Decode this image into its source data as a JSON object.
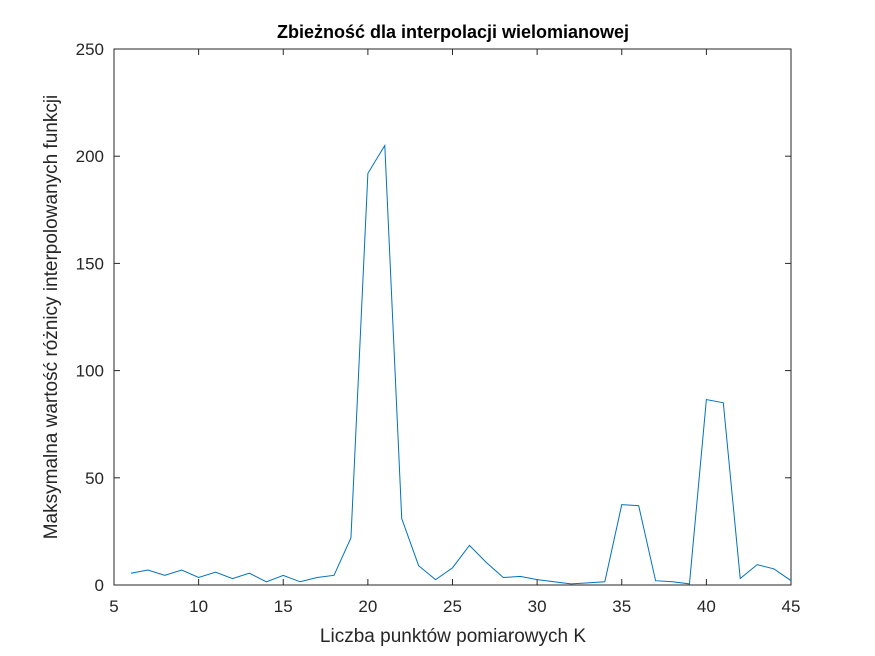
{
  "chart_data": {
    "type": "line",
    "title": "Zbieżność dla interpolacji wielomianowej",
    "xlabel": "Liczba punktów pomiarowych K",
    "ylabel": "Maksymalna wartość różnicy interpolowanych funkcji",
    "xlim": [
      5,
      45
    ],
    "ylim": [
      0,
      250
    ],
    "xticks": [
      5,
      10,
      15,
      20,
      25,
      30,
      35,
      40,
      45
    ],
    "yticks": [
      0,
      50,
      100,
      150,
      200,
      250
    ],
    "grid": false,
    "colors": {
      "line": "#0072BD",
      "axes": "#262626"
    },
    "series": [
      {
        "x": [
          6,
          7,
          8,
          9,
          10,
          11,
          12,
          13,
          14,
          15,
          16,
          17,
          18,
          19,
          20,
          21,
          22,
          23,
          24,
          25,
          26,
          27,
          28,
          29,
          30,
          31,
          32,
          33,
          34,
          35,
          36,
          37,
          38,
          39,
          40,
          41,
          42,
          43,
          44,
          45
        ],
        "values": [
          5.5,
          7,
          4.5,
          7,
          3.5,
          6,
          3,
          5.5,
          1.5,
          4.5,
          1.5,
          3.5,
          4.5,
          22,
          192,
          205,
          31,
          9,
          2.5,
          8,
          18.5,
          10.5,
          3.5,
          4,
          2.5,
          1.5,
          0.5,
          1,
          1.5,
          37.5,
          37,
          2,
          1.5,
          0.5,
          86.5,
          85,
          3,
          9.5,
          7.5,
          2
        ]
      }
    ]
  }
}
